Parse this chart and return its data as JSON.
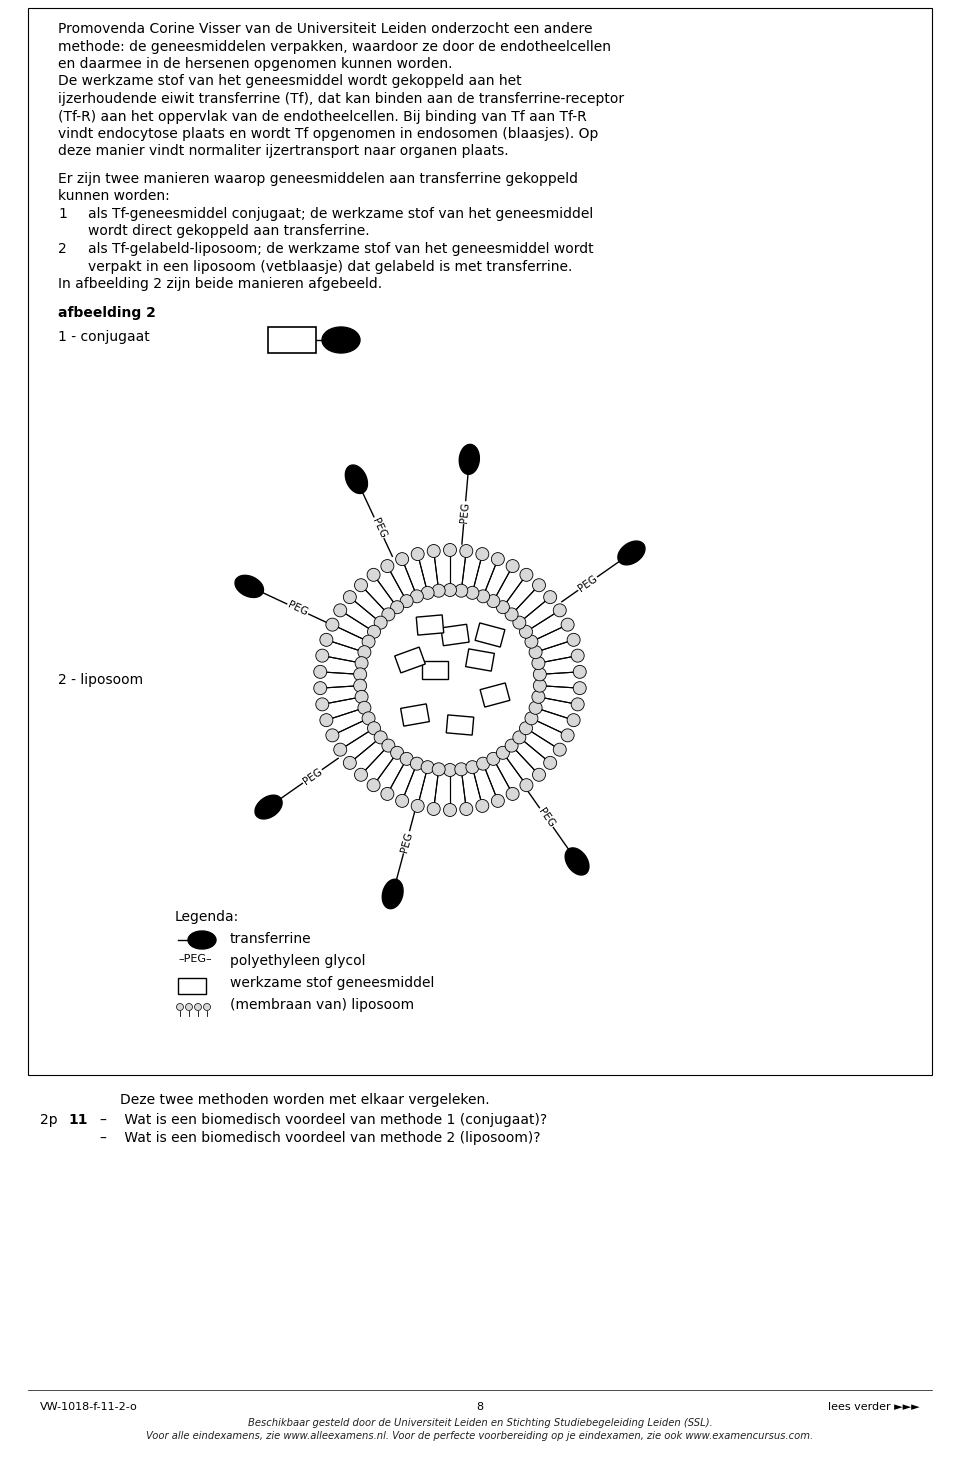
{
  "page_bg": "#ffffff",
  "border_color": "#000000",
  "text_color": "#000000",
  "gray_color": "#c8c8c8",
  "font_family": "DejaVu Sans",
  "para1_lines": [
    "Promovenda Corine Visser van de Universiteit Leiden onderzocht een andere",
    "methode: de geneesmiddelen verpakken, waardoor ze door de endotheelcellen",
    "en daarmee in de hersenen opgenomen kunnen worden.",
    "De werkzame stof van het geneesmiddel wordt gekoppeld aan het",
    "ijzerhoudende eiwit transferrine (Tf), dat kan binden aan de transferrine-receptor",
    "(Tf-R) aan het oppervlak van de endotheelcellen. Bij binding van Tf aan Tf-R",
    "vindt endocytose plaats en wordt Tf opgenomen in endosomen (blaasjes). Op",
    "deze manier vindt normaliter ijzertransport naar organen plaats."
  ],
  "para2_lines": [
    "Er zijn twee manieren waarop geneesmiddelen aan transferrine gekoppeld",
    "kunnen worden:"
  ],
  "item1_lines": [
    "als Tf-geneesmiddel conjugaat; de werkzame stof van het geneesmiddel",
    "wordt direct gekoppeld aan transferrine."
  ],
  "item2_lines": [
    "als Tf-gelabeld-liposoom; de werkzame stof van het geneesmiddel wordt",
    "verpakt in een liposoom (vetblaasje) dat gelabeld is met transferrine."
  ],
  "para3": "In afbeelding 2 zijn beide manieren afgebeeld.",
  "afbeelding_label": "afbeelding 2",
  "conjugaat_label": "1 - conjugaat",
  "liposoom_label": "2 - liposoom",
  "legenda_title": "Legenda:",
  "leg1": "transferrine",
  "leg2": "polyethyleen glycol",
  "leg3": "werkzame stof geneesmiddel",
  "leg4": "(membraan van) liposoom",
  "bottom_text": "Deze twee methoden worden met elkaar vergeleken.",
  "question": "11",
  "points": "2p",
  "q_line1": "–    Wat is een biomedisch voordeel van methode 1 (conjugaat)?",
  "q_line2": "–    Wat is een biomedisch voordeel van methode 2 (liposoom)?",
  "footer_left": "VW-1018-f-11-2-o",
  "footer_center": "8",
  "footer_right": "lees verder ►►►",
  "footer_line1": "Beschikbaar gesteld door de Universiteit Leiden en Stichting Studiebegeleiding Leiden (SSL).",
  "footer_line2": "Voor alle eindexamens, zie www.alleexamens.nl. Voor de perfecte voorbereiding op je eindexamen, zie ook www.examencursus.com."
}
